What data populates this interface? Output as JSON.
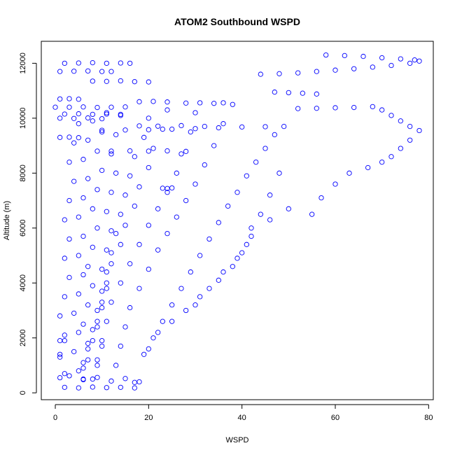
{
  "chart_data": {
    "type": "scatter",
    "title": "ATOM2 Southbound WSPD",
    "xlabel": "WSPD",
    "ylabel": "Altitude (m)",
    "xlim": [
      -3,
      81
    ],
    "ylim": [
      -250,
      12800
    ],
    "xticks": [
      0,
      20,
      40,
      60,
      80
    ],
    "yticks": [
      0,
      2000,
      4000,
      6000,
      8000,
      10000,
      12000
    ],
    "grid": false,
    "legend": "none",
    "marker": "open-circle",
    "series": [
      {
        "color": "#0000ff",
        "points": [
          [
            2,
            12000
          ],
          [
            5,
            12010
          ],
          [
            8,
            12020
          ],
          [
            11,
            12000
          ],
          [
            14,
            12010
          ],
          [
            16,
            12000
          ],
          [
            1,
            11700
          ],
          [
            4,
            11710
          ],
          [
            7,
            11720
          ],
          [
            10,
            11700
          ],
          [
            12,
            11700
          ],
          [
            8,
            11350
          ],
          [
            11,
            11340
          ],
          [
            14,
            11360
          ],
          [
            17,
            11330
          ],
          [
            20,
            11320
          ],
          [
            1,
            10700
          ],
          [
            3,
            10710
          ],
          [
            5,
            10690
          ],
          [
            0,
            10400
          ],
          [
            3,
            10400
          ],
          [
            6,
            10410
          ],
          [
            9,
            10390
          ],
          [
            12,
            10400
          ],
          [
            15,
            10410
          ],
          [
            18,
            10600
          ],
          [
            21,
            10610
          ],
          [
            24,
            10590
          ],
          [
            28,
            10550
          ],
          [
            31,
            10560
          ],
          [
            34,
            10540
          ],
          [
            36,
            10560
          ],
          [
            2,
            10150
          ],
          [
            5,
            10160
          ],
          [
            8,
            10140
          ],
          [
            11,
            10150
          ],
          [
            14,
            10140
          ],
          [
            1,
            10000
          ],
          [
            4,
            9990
          ],
          [
            7,
            10010
          ],
          [
            10,
            9980
          ],
          [
            10,
            9560
          ],
          [
            15,
            9570
          ],
          [
            20,
            9580
          ],
          [
            25,
            9600
          ],
          [
            30,
            9620
          ],
          [
            35,
            9650
          ],
          [
            40,
            9680
          ],
          [
            45,
            9690
          ],
          [
            49,
            9700
          ],
          [
            18,
            9720
          ],
          [
            22,
            9710
          ],
          [
            27,
            9730
          ],
          [
            32,
            9700
          ],
          [
            1,
            9300
          ],
          [
            3,
            9310
          ],
          [
            5,
            9290
          ],
          [
            12,
            8800
          ],
          [
            16,
            8810
          ],
          [
            20,
            8800
          ],
          [
            24,
            8810
          ],
          [
            28,
            8790
          ],
          [
            23,
            7450
          ],
          [
            24,
            7440
          ],
          [
            25,
            7460
          ],
          [
            44,
            11600
          ],
          [
            48,
            11620
          ],
          [
            52,
            11650
          ],
          [
            56,
            11700
          ],
          [
            60,
            11750
          ],
          [
            64,
            11800
          ],
          [
            68,
            11860
          ],
          [
            72,
            11920
          ],
          [
            76,
            12000
          ],
          [
            78,
            12080
          ],
          [
            58,
            12300
          ],
          [
            62,
            12280
          ],
          [
            66,
            12250
          ],
          [
            70,
            12200
          ],
          [
            74,
            12160
          ],
          [
            77,
            12120
          ],
          [
            47,
            10950
          ],
          [
            50,
            10930
          ],
          [
            53,
            10910
          ],
          [
            56,
            10880
          ],
          [
            52,
            10350
          ],
          [
            56,
            10360
          ],
          [
            60,
            10380
          ],
          [
            64,
            10390
          ],
          [
            68,
            10420
          ],
          [
            70,
            10300
          ],
          [
            72,
            10100
          ],
          [
            74,
            9900
          ],
          [
            76,
            9700
          ],
          [
            78,
            9550
          ],
          [
            76,
            9200
          ],
          [
            74,
            8900
          ],
          [
            72,
            8600
          ],
          [
            70,
            8400
          ],
          [
            67,
            8200
          ],
          [
            63,
            8000
          ],
          [
            60,
            7600
          ],
          [
            57,
            7100
          ],
          [
            55,
            6500
          ],
          [
            50,
            6700
          ],
          [
            46,
            6300
          ],
          [
            42,
            5700
          ],
          [
            40,
            5100
          ],
          [
            38,
            4600
          ],
          [
            35,
            4100
          ],
          [
            31,
            3500
          ],
          [
            28,
            3000
          ],
          [
            25,
            2600
          ],
          [
            22,
            2200
          ],
          [
            20,
            1600
          ],
          [
            48,
            8000
          ],
          [
            46,
            7200
          ],
          [
            44,
            6500
          ],
          [
            42,
            6000
          ],
          [
            41,
            5400
          ],
          [
            39,
            4900
          ],
          [
            36,
            4400
          ],
          [
            33,
            3800
          ],
          [
            30,
            3200
          ],
          [
            47,
            9400
          ],
          [
            45,
            8900
          ],
          [
            43,
            8400
          ],
          [
            41,
            7900
          ],
          [
            39,
            7300
          ],
          [
            37,
            6800
          ],
          [
            35,
            6200
          ],
          [
            33,
            5600
          ],
          [
            31,
            5000
          ],
          [
            29,
            4400
          ],
          [
            27,
            3800
          ],
          [
            25,
            3200
          ],
          [
            23,
            2600
          ],
          [
            21,
            2000
          ],
          [
            19,
            1400
          ],
          [
            38,
            10500
          ],
          [
            36,
            9800
          ],
          [
            34,
            9000
          ],
          [
            32,
            8300
          ],
          [
            30,
            7600
          ],
          [
            28,
            7000
          ],
          [
            26,
            6400
          ],
          [
            24,
            5800
          ],
          [
            22,
            5200
          ],
          [
            20,
            4500
          ],
          [
            18,
            3800
          ],
          [
            16,
            3100
          ],
          [
            15,
            2400
          ],
          [
            14,
            1700
          ],
          [
            13,
            1000
          ],
          [
            30,
            10200
          ],
          [
            29,
            9500
          ],
          [
            27,
            8700
          ],
          [
            26,
            8000
          ],
          [
            24,
            7300
          ],
          [
            22,
            6700
          ],
          [
            20,
            6100
          ],
          [
            18,
            5400
          ],
          [
            16,
            4700
          ],
          [
            14,
            4000
          ],
          [
            12,
            3300
          ],
          [
            11,
            2600
          ],
          [
            10,
            1900
          ],
          [
            9,
            1200
          ],
          [
            8,
            500
          ],
          [
            24,
            10300
          ],
          [
            23,
            9600
          ],
          [
            21,
            8900
          ],
          [
            20,
            8200
          ],
          [
            18,
            7500
          ],
          [
            17,
            6800
          ],
          [
            15,
            6100
          ],
          [
            14,
            5400
          ],
          [
            12,
            4700
          ],
          [
            11,
            4000
          ],
          [
            10,
            3300
          ],
          [
            9,
            2600
          ],
          [
            8,
            1900
          ],
          [
            7,
            1200
          ],
          [
            6,
            500
          ],
          [
            20,
            10000
          ],
          [
            19,
            9300
          ],
          [
            17,
            8600
          ],
          [
            16,
            7900
          ],
          [
            15,
            7200
          ],
          [
            14,
            6500
          ],
          [
            13,
            5800
          ],
          [
            12,
            5100
          ],
          [
            11,
            4400
          ],
          [
            10,
            3700
          ],
          [
            9,
            3000
          ],
          [
            8,
            2300
          ],
          [
            7,
            1600
          ],
          [
            6,
            900
          ],
          [
            5,
            9800
          ],
          [
            4,
            9100
          ],
          [
            3,
            8400
          ],
          [
            4,
            7700
          ],
          [
            3,
            7000
          ],
          [
            2,
            6300
          ],
          [
            3,
            5600
          ],
          [
            2,
            4900
          ],
          [
            3,
            4200
          ],
          [
            2,
            3500
          ],
          [
            1,
            2800
          ],
          [
            2,
            2100
          ],
          [
            1,
            1400
          ],
          [
            2,
            700
          ],
          [
            8,
            9900
          ],
          [
            7,
            9200
          ],
          [
            6,
            8500
          ],
          [
            7,
            7800
          ],
          [
            6,
            7100
          ],
          [
            5,
            6400
          ],
          [
            6,
            5700
          ],
          [
            5,
            5000
          ],
          [
            6,
            4300
          ],
          [
            5,
            3600
          ],
          [
            4,
            2900
          ],
          [
            5,
            2200
          ],
          [
            4,
            1500
          ],
          [
            5,
            800
          ],
          [
            11,
            10200
          ],
          [
            10,
            9500
          ],
          [
            9,
            8800
          ],
          [
            10,
            8100
          ],
          [
            9,
            7400
          ],
          [
            8,
            6700
          ],
          [
            9,
            6000
          ],
          [
            8,
            5300
          ],
          [
            7,
            4600
          ],
          [
            8,
            3900
          ],
          [
            7,
            3200
          ],
          [
            6,
            2500
          ],
          [
            7,
            1800
          ],
          [
            6,
            1100
          ],
          [
            14,
            10100
          ],
          [
            13,
            9400
          ],
          [
            12,
            8700
          ],
          [
            13,
            8000
          ],
          [
            12,
            7300
          ],
          [
            11,
            6600
          ],
          [
            12,
            5900
          ],
          [
            11,
            5200
          ],
          [
            10,
            4500
          ],
          [
            11,
            3800
          ],
          [
            10,
            3100
          ],
          [
            9,
            2400
          ],
          [
            10,
            1700
          ],
          [
            9,
            1000
          ],
          [
            1,
            1900
          ],
          [
            2,
            1900
          ],
          [
            1,
            1300
          ],
          [
            2,
            200
          ],
          [
            5,
            180
          ],
          [
            8,
            210
          ],
          [
            11,
            190
          ],
          [
            14,
            200
          ],
          [
            17,
            180
          ],
          [
            18,
            400
          ],
          [
            1,
            550
          ],
          [
            3,
            620
          ],
          [
            6,
            480
          ],
          [
            9,
            560
          ],
          [
            12,
            430
          ],
          [
            15,
            520
          ],
          [
            17,
            380
          ]
        ]
      }
    ]
  }
}
